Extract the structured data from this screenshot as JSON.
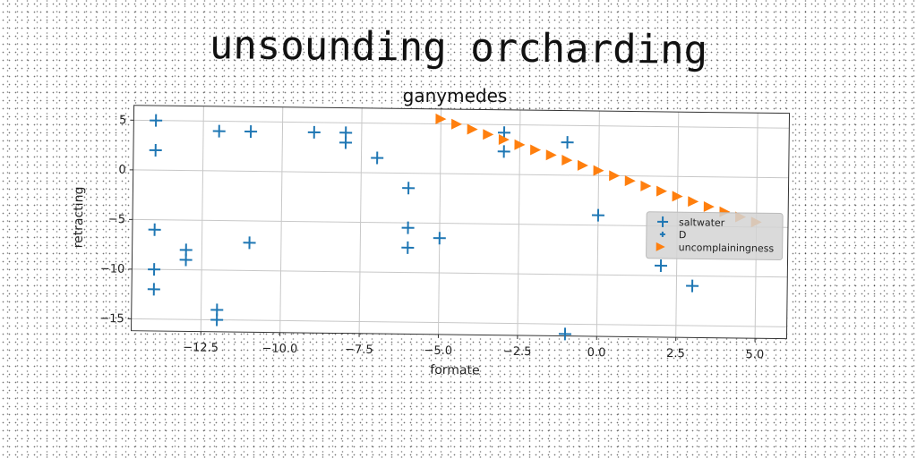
{
  "page_title": "unsounding orcharding",
  "chart_data": {
    "type": "scatter",
    "title": "ganymedes",
    "xlabel": "formate",
    "ylabel": "retracting",
    "xlim": [
      -14.7,
      6.0
    ],
    "ylim": [
      -16.2,
      6.5
    ],
    "xticks": [
      -12.5,
      -10.0,
      -7.5,
      -5.0,
      -2.5,
      0.0,
      2.5,
      5.0
    ],
    "xtick_labels": [
      "−12.5",
      "−10.0",
      "−7.5",
      "−5.0",
      "−2.5",
      "0.0",
      "2.5",
      "5.0"
    ],
    "yticks": [
      5,
      0,
      -5,
      -10,
      -15
    ],
    "ytick_labels": [
      "5",
      "0",
      "−5",
      "−10",
      "−15"
    ],
    "grid": true,
    "legend_position": "right",
    "colors": {
      "blue": "#1f77b4",
      "orange": "#ff7f0e"
    },
    "series": [
      {
        "name": "saltwater",
        "marker": "+",
        "points": [
          [
            -14,
            5
          ],
          [
            -14,
            2
          ],
          [
            -12,
            4
          ],
          [
            -11,
            4
          ],
          [
            -9,
            4
          ],
          [
            -8,
            4
          ],
          [
            -8,
            3
          ],
          [
            -7,
            1.5
          ],
          [
            -6,
            -1.5
          ],
          [
            -6,
            -5.5
          ],
          [
            -6,
            -7.5
          ],
          [
            -5,
            -6.5
          ],
          [
            -3,
            4.2
          ],
          [
            -3,
            2.3
          ],
          [
            -1,
            3.3
          ],
          [
            0,
            -4
          ],
          [
            2,
            -9
          ],
          [
            3,
            -11
          ],
          [
            -14,
            -6
          ],
          [
            -14,
            -10
          ],
          [
            -14,
            -12
          ],
          [
            -13,
            -8
          ],
          [
            -13,
            -9
          ],
          [
            -12,
            -14
          ],
          [
            -12,
            -15
          ],
          [
            -11,
            -7.2
          ],
          [
            -1,
            -16
          ]
        ]
      },
      {
        "name": "D",
        "marker": "+",
        "points": []
      },
      {
        "name": "uncomplainingness",
        "marker": ">",
        "points": [
          [
            -5,
            5.5
          ],
          [
            -4.5,
            5
          ],
          [
            -4,
            4.5
          ],
          [
            -3.5,
            4
          ],
          [
            -3,
            3.5
          ],
          [
            -2.5,
            3
          ],
          [
            -2,
            2.5
          ],
          [
            -1.5,
            2
          ],
          [
            -1,
            1.5
          ],
          [
            -0.5,
            1
          ],
          [
            0,
            0.5
          ],
          [
            0.5,
            0
          ],
          [
            1,
            -0.5
          ],
          [
            1.5,
            -1
          ],
          [
            2,
            -1.5
          ],
          [
            2.5,
            -2
          ],
          [
            3,
            -2.5
          ],
          [
            3.5,
            -3
          ],
          [
            4,
            -3.5
          ],
          [
            4.5,
            -4
          ],
          [
            5,
            -4.5
          ]
        ]
      }
    ]
  }
}
